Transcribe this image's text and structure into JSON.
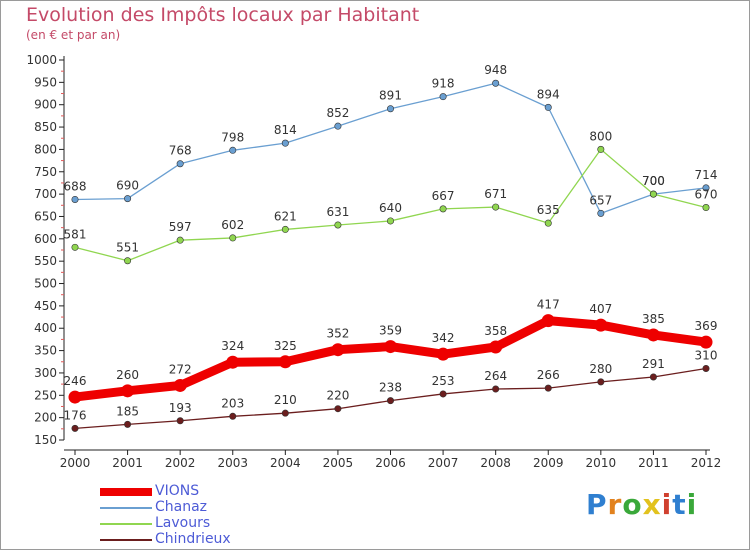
{
  "title": "Evolution des Impôts locaux par Habitant",
  "subtitle": "(en € et par an)",
  "logo_text": "Proxiti",
  "chart_data": {
    "type": "line",
    "title": "Evolution des Impôts locaux par Habitant",
    "subtitle": "(en € et par an)",
    "xlabel": "",
    "ylabel": "",
    "x": [
      "2000",
      "2001",
      "2002",
      "2003",
      "2004",
      "2005",
      "2006",
      "2007",
      "2008",
      "2009",
      "2010",
      "2011",
      "2012"
    ],
    "ylim": [
      150,
      1000
    ],
    "yticks": [
      150,
      200,
      250,
      300,
      350,
      400,
      450,
      500,
      550,
      600,
      650,
      700,
      750,
      800,
      850,
      900,
      950,
      1000
    ],
    "grid": false,
    "legend_position": "bottom-left",
    "series": [
      {
        "name": "VIONS",
        "color": "#ee0000",
        "values": [
          246,
          260,
          272,
          324,
          325,
          352,
          359,
          342,
          358,
          417,
          407,
          385,
          369
        ]
      },
      {
        "name": "Chanaz",
        "color": "#6a9fd1",
        "values": [
          688,
          690,
          768,
          798,
          814,
          852,
          891,
          918,
          948,
          894,
          657,
          700,
          714
        ]
      },
      {
        "name": "Lavours",
        "color": "#90d650",
        "values": [
          581,
          551,
          597,
          602,
          621,
          631,
          640,
          667,
          671,
          635,
          800,
          700,
          670
        ]
      },
      {
        "name": "Chindrieux",
        "color": "#6b1e1e",
        "values": [
          176,
          185,
          193,
          203,
          210,
          220,
          238,
          253,
          264,
          266,
          280,
          291,
          310
        ]
      }
    ]
  }
}
